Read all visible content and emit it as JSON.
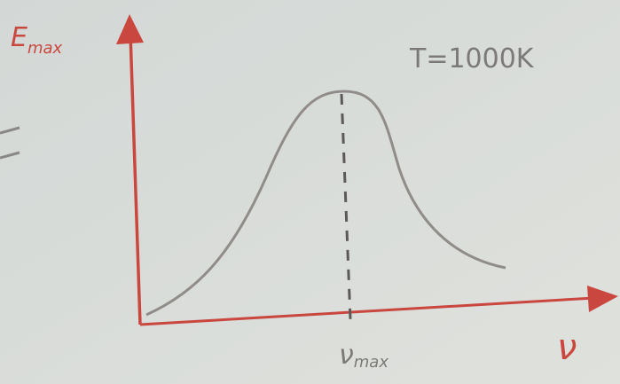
{
  "y_axis": {
    "symbol": "E",
    "subscript": "max"
  },
  "x_axis": {
    "symbol": "ν"
  },
  "temperature": "T=1000K",
  "peak_label": {
    "symbol": "ν",
    "subscript": "max"
  }
}
